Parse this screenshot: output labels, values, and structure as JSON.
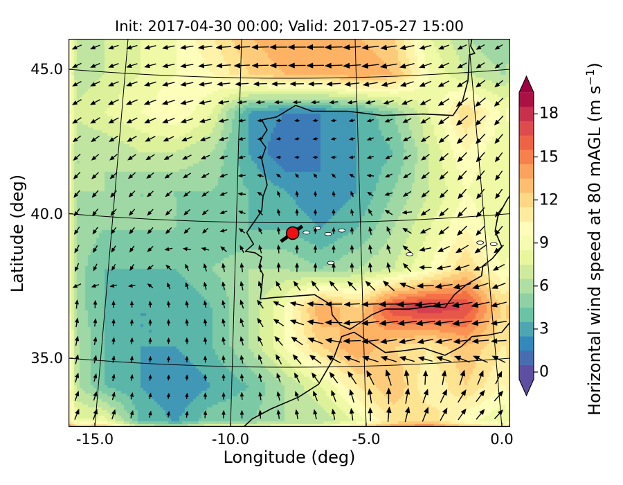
{
  "figure": {
    "title": "Init: 2017-04-30 00:00; Valid: 2017-05-27 15:00",
    "xlabel": "Longitude (deg)",
    "ylabel": "Latitude (deg)"
  },
  "axes": {
    "x_tick_labels": [
      "-15.0",
      "-10.0",
      "-5.0",
      "0.0"
    ],
    "x_tick_lons": [
      -15,
      -10,
      -5,
      0
    ],
    "y_tick_labels": [
      "45.0",
      "40.0",
      "35.0"
    ],
    "y_tick_lats": [
      45,
      40,
      35
    ],
    "lon_range": [
      -15.97,
      0.31
    ],
    "lat_range": [
      32.63,
      46.06
    ]
  },
  "colorbar": {
    "label_prefix": "Horizontal wind speed at 80 mAGL (m s",
    "label_sup": "−1",
    "label_suffix": ")",
    "tick_labels": [
      "0",
      "3",
      "6",
      "9",
      "12",
      "15",
      "18"
    ],
    "tick_values": [
      0,
      3,
      6,
      9,
      12,
      15,
      18
    ],
    "vmin": 0,
    "vmax": 19.5,
    "band_step_ms": 1,
    "extend": "both",
    "palette": [
      "#5e4fa2",
      "#3288bd",
      "#66c2a5",
      "#abdda4",
      "#e6f598",
      "#ffffbf",
      "#fee08b",
      "#fdae61",
      "#f46d43",
      "#d53e4f",
      "#9e0142"
    ]
  },
  "marker": {
    "lon": -7.71,
    "lat": 39.33,
    "fill": "#ee1111",
    "edge": "#000000"
  },
  "chart_data": {
    "type": "heatmap",
    "title": "Init: 2017-04-30 00:00; Valid: 2017-05-27 15:00",
    "xlabel": "Longitude (deg)",
    "ylabel": "Latitude (deg)",
    "value_label": "Horizontal wind speed at 80 mAGL (m s⁻¹)",
    "legend_position": "right-colorbar",
    "grid": "graticule 5 deg",
    "lons": [
      -16,
      -14.67,
      -13.33,
      -12,
      -10.67,
      -9.33,
      -8,
      -6.67,
      -5.33,
      -4,
      -2.67,
      -1.33,
      0
    ],
    "lats": [
      46.2,
      44.85,
      43.5,
      42.15,
      40.8,
      39.45,
      38.1,
      36.75,
      35.4,
      34.05,
      32.7
    ],
    "wind_speed_ms": [
      [
        7,
        7,
        8,
        9,
        11,
        13,
        14,
        14,
        13,
        12,
        8,
        6,
        5
      ],
      [
        6,
        7,
        8,
        9,
        10,
        12,
        13,
        13,
        14,
        13,
        9,
        7,
        6
      ],
      [
        7,
        8,
        9,
        10,
        8,
        3,
        2,
        2,
        3,
        5,
        8,
        12,
        9
      ],
      [
        6,
        6,
        7,
        7,
        6,
        3,
        1,
        2,
        3,
        4,
        7,
        10,
        8
      ],
      [
        6,
        6,
        5,
        5,
        5,
        4,
        3,
        2,
        3,
        5,
        7,
        9,
        8
      ],
      [
        6,
        5,
        5,
        5,
        4,
        4,
        4,
        3,
        4,
        6,
        8,
        10,
        8
      ],
      [
        6,
        4,
        4,
        4,
        5,
        6,
        6,
        5,
        6,
        7,
        9,
        12,
        9
      ],
      [
        6,
        4,
        3,
        3,
        4,
        6,
        9,
        14,
        12,
        17,
        18,
        17,
        12
      ],
      [
        7,
        4,
        3,
        3,
        4,
        6,
        9,
        12,
        14,
        12,
        11,
        13,
        11
      ],
      [
        7,
        4,
        3,
        2,
        3,
        4,
        6,
        8,
        11,
        13,
        10,
        12,
        10
      ],
      [
        8,
        9,
        4,
        3,
        5,
        5,
        6,
        6,
        8,
        11,
        12,
        9,
        8
      ]
    ],
    "arrow_dir_deg_ccw_from_east": [
      [
        205,
        200,
        195,
        190,
        185,
        182,
        180,
        180,
        183,
        188,
        195,
        205,
        210
      ],
      [
        208,
        203,
        198,
        192,
        186,
        182,
        180,
        181,
        185,
        192,
        202,
        212,
        218
      ],
      [
        213,
        208,
        203,
        197,
        192,
        187,
        183,
        186,
        192,
        200,
        212,
        220,
        226
      ],
      [
        222,
        217,
        212,
        206,
        200,
        195,
        190,
        192,
        198,
        206,
        216,
        226,
        232
      ],
      [
        230,
        227,
        224,
        220,
        215,
        170,
        100,
        92,
        120,
        212,
        222,
        230,
        235
      ],
      [
        236,
        233,
        230,
        227,
        222,
        130,
        90,
        88,
        95,
        115,
        215,
        226,
        231
      ],
      [
        248,
        243,
        238,
        120,
        102,
        95,
        90,
        88,
        94,
        104,
        185,
        198,
        208
      ],
      [
        82,
        86,
        90,
        95,
        102,
        112,
        168,
        184,
        189,
        186,
        186,
        190,
        194
      ],
      [
        76,
        80,
        85,
        90,
        96,
        106,
        130,
        160,
        184,
        190,
        193,
        186,
        181
      ],
      [
        70,
        75,
        80,
        85,
        90,
        96,
        108,
        120,
        110,
        90,
        70,
        58,
        50
      ],
      [
        66,
        70,
        75,
        80,
        85,
        90,
        95,
        98,
        92,
        80,
        65,
        52,
        45
      ]
    ],
    "site_marker_lonlat": [
      -7.71,
      39.33
    ],
    "coastlines_lonlat": {
      "iberia_france": [
        [
          -1.1,
          46.1
        ],
        [
          -1.15,
          45.8
        ],
        [
          -1.0,
          45.55
        ],
        [
          -1.2,
          45.5
        ],
        [
          -1.25,
          44.6
        ],
        [
          -1.45,
          43.9
        ],
        [
          -1.8,
          43.4
        ],
        [
          -2.9,
          43.45
        ],
        [
          -4.4,
          43.4
        ],
        [
          -5.7,
          43.55
        ],
        [
          -7.0,
          43.55
        ],
        [
          -7.6,
          43.75
        ],
        [
          -8.3,
          43.35
        ],
        [
          -8.85,
          43.25
        ],
        [
          -8.65,
          42.9
        ],
        [
          -8.9,
          42.55
        ],
        [
          -8.7,
          42.3
        ],
        [
          -8.85,
          41.9
        ],
        [
          -8.65,
          41.0
        ],
        [
          -8.8,
          40.6
        ],
        [
          -8.85,
          40.1
        ],
        [
          -9.4,
          39.35
        ],
        [
          -9.15,
          38.95
        ],
        [
          -9.45,
          38.7
        ],
        [
          -9.1,
          38.65
        ],
        [
          -8.85,
          38.5
        ],
        [
          -8.95,
          38.15
        ],
        [
          -8.8,
          37.9
        ],
        [
          -8.9,
          37.05
        ],
        [
          -8.4,
          37.1
        ],
        [
          -7.6,
          37.15
        ],
        [
          -6.9,
          37.2
        ],
        [
          -6.3,
          36.85
        ],
        [
          -6.25,
          36.5
        ],
        [
          -5.95,
          36.15
        ],
        [
          -5.6,
          36.0
        ],
        [
          -5.35,
          36.15
        ],
        [
          -4.8,
          36.5
        ],
        [
          -4.3,
          36.7
        ],
        [
          -3.4,
          36.7
        ],
        [
          -2.6,
          36.8
        ],
        [
          -2.1,
          36.75
        ],
        [
          -1.75,
          37.2
        ],
        [
          -1.3,
          37.55
        ],
        [
          -0.75,
          37.85
        ],
        [
          -0.7,
          38.2
        ],
        [
          -0.35,
          38.45
        ],
        [
          0.0,
          38.85
        ],
        [
          -0.25,
          39.4
        ],
        [
          -0.15,
          39.9
        ],
        [
          0.2,
          40.5
        ],
        [
          0.35,
          40.7
        ]
      ],
      "north_africa": [
        [
          -9.6,
          32.55
        ],
        [
          -9.2,
          32.9
        ],
        [
          -8.5,
          33.25
        ],
        [
          -7.5,
          33.65
        ],
        [
          -6.75,
          34.1
        ],
        [
          -6.2,
          35.0
        ],
        [
          -5.9,
          35.75
        ],
        [
          -5.45,
          35.9
        ],
        [
          -5.2,
          35.75
        ],
        [
          -4.3,
          35.2
        ],
        [
          -3.7,
          35.25
        ],
        [
          -2.9,
          35.35
        ],
        [
          -2.1,
          35.1
        ],
        [
          -1.5,
          35.4
        ],
        [
          -1.1,
          35.75
        ],
        [
          -0.5,
          35.8
        ],
        [
          0.0,
          35.9
        ],
        [
          0.35,
          36.3
        ]
      ]
    },
    "water_bodies_lonlat": [
      [
        -7.2,
        39.35
      ],
      [
        -6.8,
        39.5
      ],
      [
        -6.4,
        39.3
      ],
      [
        -5.9,
        39.42
      ],
      [
        -3.4,
        38.6
      ],
      [
        -0.8,
        39.0
      ],
      [
        -6.3,
        38.3
      ],
      [
        -0.3,
        38.95
      ]
    ]
  }
}
